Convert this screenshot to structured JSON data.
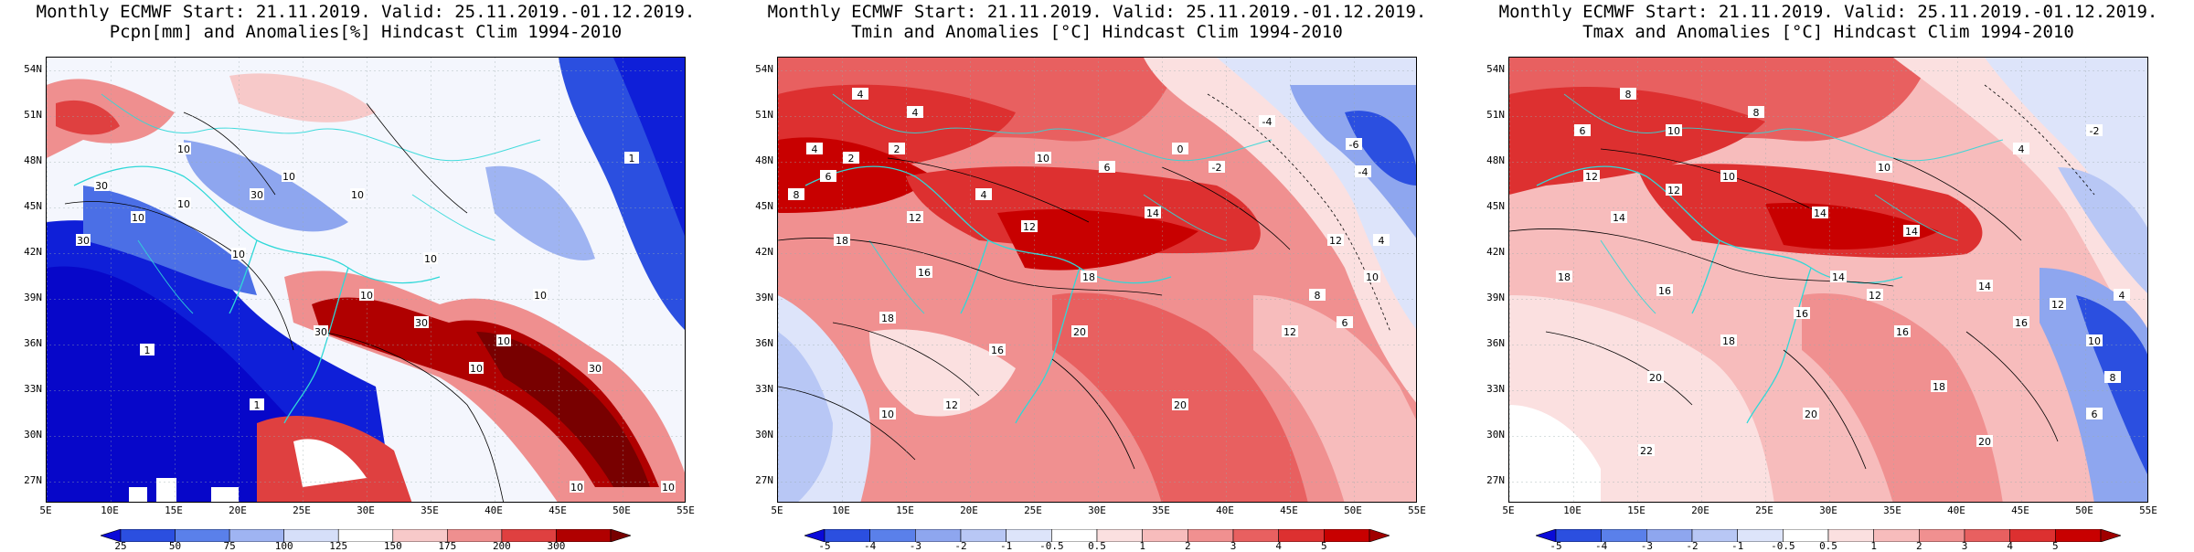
{
  "panels": [
    {
      "id": "pcpn",
      "title_line1": "Monthly ECMWF Start: 21.11.2019. Valid: 25.11.2019.-01.12.2019.",
      "title_line2": "Pcpn[mm] and Anomalies[%] Hindcast Clim 1994-2010",
      "colorbar": {
        "colors": [
          "#0a0ad8",
          "#2b4fe0",
          "#5a80ea",
          "#9fb4f2",
          "#d6dff9",
          "#ffffff",
          "#f7c9c9",
          "#ef8f8f",
          "#df4040",
          "#b00000",
          "#780000"
        ],
        "labels": [
          "25",
          "50",
          "75",
          "100",
          "125",
          "150",
          "175",
          "200",
          "300"
        ]
      },
      "contour_labels": [
        "30",
        "10",
        "10",
        "10",
        "10",
        "10",
        "1",
        "10",
        "30",
        "10",
        "30",
        "10",
        "10",
        "30",
        "1",
        "30",
        "10",
        "10",
        "30",
        "1",
        "10",
        "10"
      ]
    },
    {
      "id": "tmin",
      "title_line1": "Monthly ECMWF Start: 21.11.2019. Valid: 25.11.2019.-01.12.2019.",
      "title_line2": "Tmin and Anomalies [°C] Hindcast Clim 1994-2010",
      "colorbar": {
        "colors": [
          "#0a0ad8",
          "#2b4fe0",
          "#5a80ea",
          "#8ea6ef",
          "#b8c7f5",
          "#dde4fa",
          "#ffffff",
          "#fbe0e0",
          "#f7bcbc",
          "#f09090",
          "#e86060",
          "#dd3030",
          "#c80000",
          "#a00000"
        ],
        "labels": [
          "-5",
          "-4",
          "-3",
          "-2",
          "-1",
          "-0.5",
          "0.5",
          "1",
          "2",
          "3",
          "4",
          "5"
        ]
      },
      "contour_labels": [
        "4",
        "4",
        "2",
        "4",
        "6",
        "2",
        "8",
        "12",
        "4",
        "10",
        "6",
        "12",
        "14",
        "0",
        "-2",
        "-4",
        "-6",
        "-4",
        "16",
        "18",
        "18",
        "20",
        "10",
        "12",
        "16",
        "18",
        "20",
        "12",
        "12",
        "10",
        "8",
        "6",
        "4"
      ]
    },
    {
      "id": "tmax",
      "title_line1": "Monthly ECMWF Start: 21.11.2019. Valid: 25.11.2019.-01.12.2019.",
      "title_line2": "Tmax and Anomalies [°C] Hindcast Clim 1994-2010",
      "colorbar": {
        "colors": [
          "#0a0ad8",
          "#2b4fe0",
          "#5a80ea",
          "#8ea6ef",
          "#b8c7f5",
          "#dde4fa",
          "#ffffff",
          "#fbe0e0",
          "#f7bcbc",
          "#f09090",
          "#e86060",
          "#dd3030",
          "#c80000",
          "#a00000"
        ],
        "labels": [
          "-5",
          "-4",
          "-3",
          "-2",
          "-1",
          "-0.5",
          "0.5",
          "1",
          "2",
          "3",
          "4",
          "5"
        ]
      },
      "contour_labels": [
        "8",
        "6",
        "10",
        "8",
        "12",
        "10",
        "14",
        "12",
        "14",
        "10",
        "-2",
        "4",
        "14",
        "16",
        "18",
        "20",
        "18",
        "16",
        "14",
        "12",
        "16",
        "20",
        "22",
        "20",
        "18",
        "16",
        "14",
        "12",
        "10",
        "8",
        "6",
        "4"
      ]
    }
  ],
  "axes": {
    "lat_labels": [
      "54N",
      "51N",
      "48N",
      "45N",
      "42N",
      "39N",
      "36N",
      "33N",
      "30N",
      "27N"
    ],
    "lon_labels": [
      "5E",
      "10E",
      "15E",
      "20E",
      "25E",
      "30E",
      "35E",
      "40E",
      "45E",
      "50E",
      "55E"
    ]
  }
}
